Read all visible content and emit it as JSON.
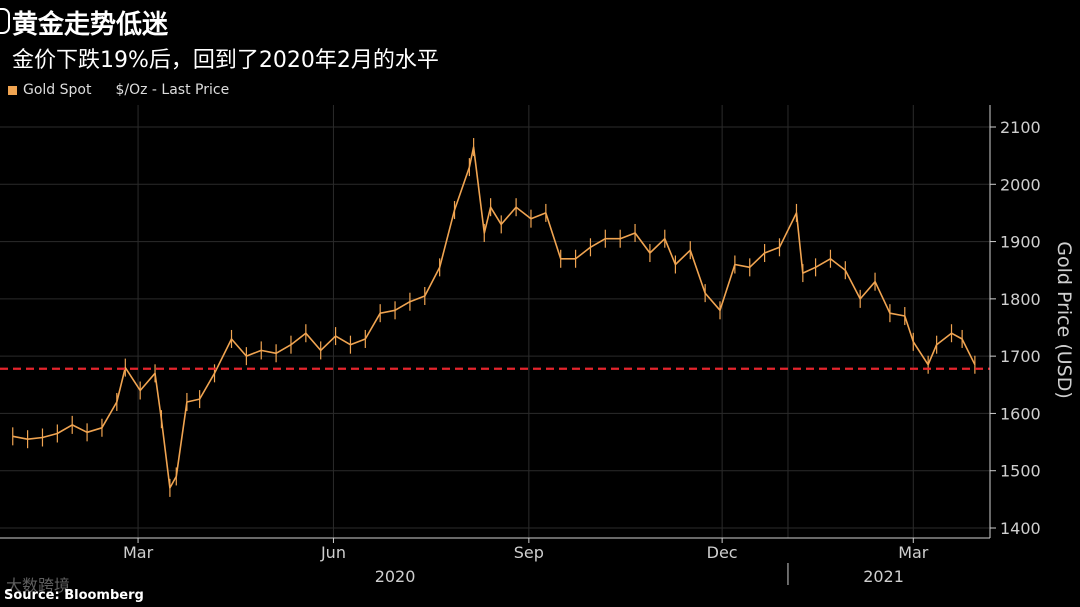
{
  "header": {
    "title": "黄金走势低迷",
    "subtitle": "金价下跌19%后，回到了2020年2月的水平"
  },
  "legend": {
    "series_label": "Gold Spot",
    "units_label": "$/Oz - Last Price"
  },
  "footer": {
    "source": "Source: Bloomberg",
    "watermark": "大数跨境"
  },
  "colors": {
    "background": "#000000",
    "series": "#f0a451",
    "reference_line": "#e5242d",
    "axis": "#cfcfcf",
    "grid": "#2b2b2b"
  },
  "chart_data": {
    "type": "line",
    "title": "黄金走势低迷",
    "subtitle": "金价下跌19%后，回到了2020年2月的水平",
    "ylabel": "Gold Price (USD)",
    "ylim": [
      1400,
      2100
    ],
    "yticks": [
      1400,
      1500,
      1600,
      1700,
      1800,
      1900,
      2000,
      2100
    ],
    "x_month_labels": [
      "Mar",
      "Jun",
      "Sep",
      "Dec",
      "Mar"
    ],
    "x_year_labels": [
      "2020",
      "2021"
    ],
    "axis_side": "right",
    "grid": true,
    "legend_position": "top-left",
    "reference_line": {
      "value": 1678,
      "style": "dashed",
      "color": "#e5242d"
    },
    "series": [
      {
        "name": "Gold Spot",
        "x": [
          "2020-01-02",
          "2020-01-09",
          "2020-01-16",
          "2020-01-23",
          "2020-01-30",
          "2020-02-06",
          "2020-02-13",
          "2020-02-20",
          "2020-02-24",
          "2020-03-02",
          "2020-03-09",
          "2020-03-12",
          "2020-03-16",
          "2020-03-19",
          "2020-03-24",
          "2020-03-30",
          "2020-04-06",
          "2020-04-14",
          "2020-04-21",
          "2020-04-28",
          "2020-05-05",
          "2020-05-12",
          "2020-05-19",
          "2020-05-26",
          "2020-06-02",
          "2020-06-09",
          "2020-06-16",
          "2020-06-23",
          "2020-06-30",
          "2020-07-07",
          "2020-07-14",
          "2020-07-21",
          "2020-07-28",
          "2020-08-04",
          "2020-08-06",
          "2020-08-11",
          "2020-08-14",
          "2020-08-19",
          "2020-08-26",
          "2020-09-02",
          "2020-09-09",
          "2020-09-16",
          "2020-09-23",
          "2020-09-30",
          "2020-10-07",
          "2020-10-14",
          "2020-10-21",
          "2020-10-28",
          "2020-11-04",
          "2020-11-09",
          "2020-11-16",
          "2020-11-23",
          "2020-11-30",
          "2020-12-07",
          "2020-12-14",
          "2020-12-21",
          "2020-12-28",
          "2021-01-05",
          "2021-01-08",
          "2021-01-14",
          "2021-01-21",
          "2021-01-28",
          "2021-02-04",
          "2021-02-11",
          "2021-02-18",
          "2021-02-25",
          "2021-03-01",
          "2021-03-08",
          "2021-03-12",
          "2021-03-19",
          "2021-03-24",
          "2021-03-30"
        ],
        "values": [
          1560,
          1555,
          1558,
          1565,
          1580,
          1567,
          1575,
          1620,
          1680,
          1640,
          1670,
          1590,
          1470,
          1490,
          1620,
          1625,
          1670,
          1730,
          1700,
          1710,
          1705,
          1720,
          1740,
          1710,
          1735,
          1720,
          1730,
          1775,
          1780,
          1795,
          1805,
          1855,
          1955,
          2030,
          2065,
          1915,
          1960,
          1930,
          1960,
          1940,
          1950,
          1870,
          1870,
          1890,
          1905,
          1905,
          1915,
          1880,
          1905,
          1860,
          1885,
          1810,
          1780,
          1860,
          1855,
          1880,
          1890,
          1950,
          1845,
          1855,
          1870,
          1850,
          1800,
          1830,
          1775,
          1770,
          1725,
          1685,
          1720,
          1740,
          1730,
          1685
        ]
      }
    ]
  }
}
